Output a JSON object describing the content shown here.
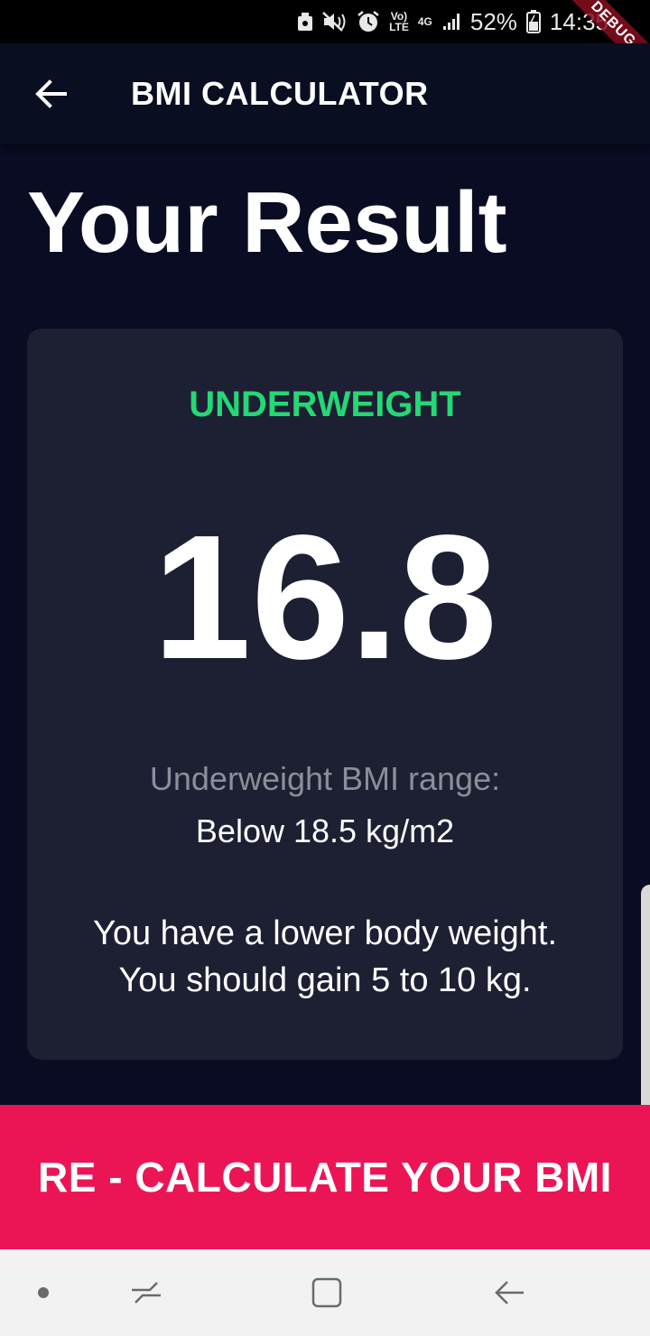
{
  "status_bar": {
    "signal_label_top": "Vo)",
    "signal_label_bottom": "LTE",
    "network": "4G",
    "battery": "52%",
    "time": "14:35",
    "debug": "DEBUG"
  },
  "app_bar": {
    "title": "BMI CALCULATOR",
    "back_icon": "arrow-left-icon"
  },
  "page": {
    "title": "Your Result"
  },
  "result": {
    "label": "UNDERWEIGHT",
    "label_color": "#24D876",
    "bmi": "16.8",
    "range_label": "Underweight BMI range:",
    "range_value": "Below 18.5 kg/m2",
    "advice_line1": "You have a lower body weight.",
    "advice_line2": "You should gain 5 to 10 kg."
  },
  "button": {
    "label": "RE - CALCULATE YOUR BMI",
    "color": "#EB1555"
  },
  "nav": {
    "icons": [
      "dot-icon",
      "recents-icon",
      "home-icon",
      "back-icon"
    ]
  }
}
